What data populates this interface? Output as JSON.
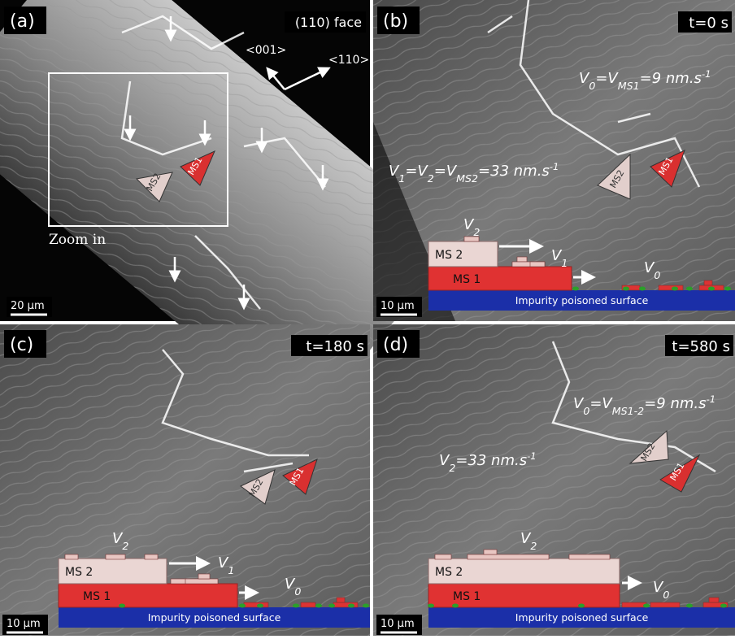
{
  "panels": [
    {
      "label": "(a)",
      "corner": "(110) face",
      "directions": [
        "<001>",
        "<110>"
      ],
      "zoom": "Zoom in",
      "scale": "20 µm",
      "markers": [
        "MS2",
        "MS1"
      ]
    },
    {
      "label": "(b)",
      "corner": "t=0 s",
      "equations": [
        [
          "V",
          "0",
          "=V",
          "MS1",
          "=9 nm.s",
          "-1"
        ],
        [
          "V",
          "1",
          "=V",
          "2",
          "=V",
          "MS2",
          "=33 nm.s",
          "-1"
        ]
      ],
      "markers": [
        "MS2",
        "MS1"
      ],
      "schematic": {
        "v2": [
          "V",
          "2"
        ],
        "ms2": "MS 2",
        "v1": [
          "V",
          "1"
        ],
        "ms1": "MS 1",
        "v0": [
          "V",
          "0"
        ],
        "surface": "Impurity poisoned surface"
      },
      "scale": "10 µm"
    },
    {
      "label": "(c)",
      "corner": "t=180 s",
      "markers": [
        "MS2",
        "MS1"
      ],
      "schematic": {
        "v2": [
          "V",
          "2"
        ],
        "ms2": "MS 2",
        "v1": [
          "V",
          "1"
        ],
        "ms1": "MS 1",
        "v0": [
          "V",
          "0"
        ],
        "surface": "Impurity poisoned surface"
      },
      "scale": "10 µm"
    },
    {
      "label": "(d)",
      "corner": "t=580 s",
      "equations": [
        [
          "V",
          "0",
          "=V",
          "MS1-2",
          "=9 nm.s",
          "-1"
        ],
        [
          "V",
          "2",
          "=33 nm.s",
          "-1"
        ]
      ],
      "markers": [
        "MS2",
        "MS1"
      ],
      "schematic": {
        "v2": [
          "V",
          "2"
        ],
        "ms2": "MS 2",
        "ms1": "MS 1",
        "v0": [
          "V",
          "0"
        ],
        "surface": "Impurity poisoned surface"
      },
      "scale": "10 µm"
    }
  ]
}
